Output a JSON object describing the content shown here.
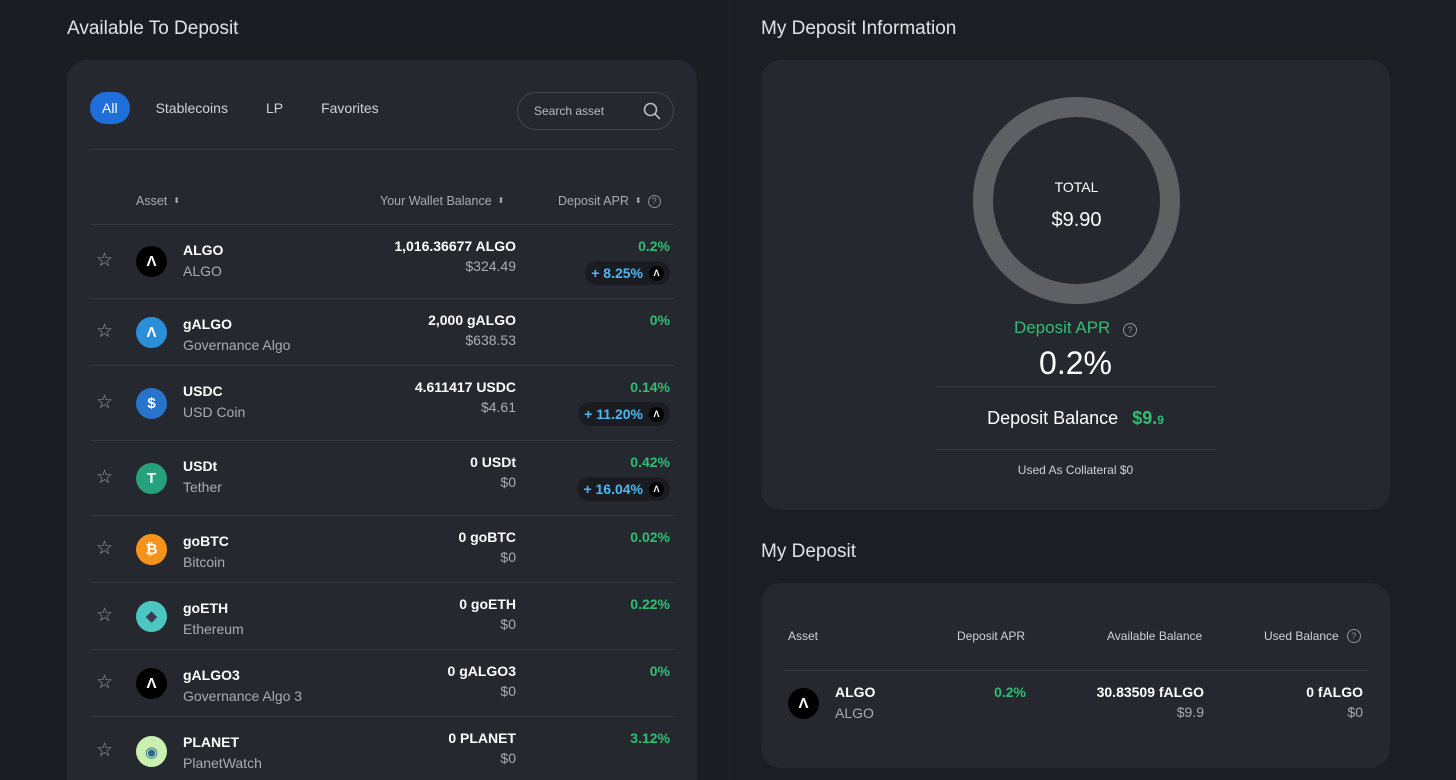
{
  "left": {
    "title": "Available To Deposit",
    "filters": [
      "All",
      "Stablecoins",
      "LP",
      "Favorites"
    ],
    "search_placeholder": "Search asset",
    "columns": {
      "asset": "Asset",
      "wallet": "Your Wallet Balance",
      "apr": "Deposit APR"
    },
    "rows": [
      {
        "symbol": "ALGO",
        "name": "ALGO",
        "balance": "1,016.36677 ALGO",
        "usd": "$324.49",
        "apr": "0.2%",
        "boost": "+ 8.25%",
        "coin_glyph": "Λ",
        "coin_bg": "#000000",
        "coin_fg": "#ffffff"
      },
      {
        "symbol": "gALGO",
        "name": "Governance Algo",
        "balance": "2,000 gALGO",
        "usd": "$638.53",
        "apr": "0%",
        "boost": "",
        "coin_glyph": "Λ",
        "coin_bg": "#2a8fd8",
        "coin_fg": "#ffffff"
      },
      {
        "symbol": "USDC",
        "name": "USD Coin",
        "balance": "4.611417 USDC",
        "usd": "$4.61",
        "apr": "0.14%",
        "boost": "+ 11.20%",
        "coin_glyph": "$",
        "coin_bg": "#2775ca",
        "coin_fg": "#ffffff"
      },
      {
        "symbol": "USDt",
        "name": "Tether",
        "balance": "0 USDt",
        "usd": "$0",
        "apr": "0.42%",
        "boost": "+ 16.04%",
        "coin_glyph": "T",
        "coin_bg": "#26a17b",
        "coin_fg": "#ffffff"
      },
      {
        "symbol": "goBTC",
        "name": "Bitcoin",
        "balance": "0 goBTC",
        "usd": "$0",
        "apr": "0.02%",
        "boost": "",
        "coin_glyph": "₿",
        "coin_bg": "#f7931a",
        "coin_fg": "#ffffff"
      },
      {
        "symbol": "goETH",
        "name": "Ethereum",
        "balance": "0 goETH",
        "usd": "$0",
        "apr": "0.22%",
        "boost": "",
        "coin_glyph": "◆",
        "coin_bg": "#4cc6c0",
        "coin_fg": "#3c3c55"
      },
      {
        "symbol": "gALGO3",
        "name": "Governance Algo 3",
        "balance": "0 gALGO3",
        "usd": "$0",
        "apr": "0%",
        "boost": "",
        "coin_glyph": "Λ",
        "coin_bg": "#000000",
        "coin_fg": "#ffffff"
      },
      {
        "symbol": "PLANET",
        "name": "PlanetWatch",
        "balance": "0 PLANET",
        "usd": "$0",
        "apr": "3.12%",
        "boost": "",
        "coin_glyph": "◉",
        "coin_bg": "#c9f0b0",
        "coin_fg": "#2a6a8a"
      }
    ]
  },
  "info": {
    "title": "My Deposit Information",
    "total_label": "TOTAL",
    "total_value": "$9.90",
    "apr_label": "Deposit APR",
    "apr_value": "0.2%",
    "balance_label": "Deposit Balance",
    "balance_value": "$9.",
    "balance_value_small": "9",
    "collateral": "Used As Collateral $0"
  },
  "my_deposit": {
    "title": "My Deposit",
    "columns": {
      "asset": "Asset",
      "apr": "Deposit APR",
      "available": "Available Balance",
      "used": "Used Balance"
    },
    "row": {
      "symbol": "ALGO",
      "name": "ALGO",
      "apr": "0.2%",
      "available": "30.83509 fALGO",
      "available_usd": "$9.9",
      "used": "0 fALGO",
      "used_usd": "$0"
    }
  },
  "colors": {
    "accent": "#1e6fd9",
    "positive": "#2fbf71",
    "boost": "#4fb8f0"
  }
}
